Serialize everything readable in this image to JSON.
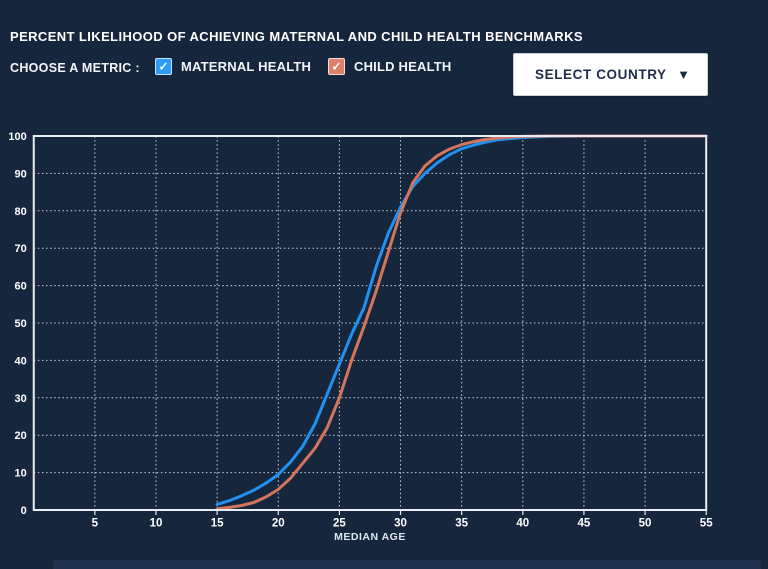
{
  "header": {
    "title": "PERCENT LIKELIHOOD OF ACHIEVING MATERNAL AND CHILD HEALTH BENCHMARKS"
  },
  "controls": {
    "choose_metric_label": "CHOOSE A METRIC :",
    "check_glyph": "✓",
    "metrics": [
      {
        "label": "MATERNAL HEALTH",
        "checked": true,
        "color": "#2D9CF4"
      },
      {
        "label": "CHILD HEALTH",
        "checked": true,
        "color": "#DD7F6B"
      }
    ],
    "country_select": {
      "label": "SELECT COUNTRY",
      "arrow_glyph": "▼"
    }
  },
  "colors": {
    "background": "#16273D",
    "axis_frame": "#E8EDF3",
    "gridline": "#C9D2DB",
    "tick_label": "#FFFFFF",
    "maternal_line": "#2191F1",
    "child_line": "#D4755E",
    "button_bg": "#FFFFFF",
    "button_text": "#1C2D49"
  },
  "chart_data": {
    "type": "line",
    "title": "",
    "xlabel": "MEDIAN AGE",
    "ylabel": "",
    "xlim": [
      0,
      55
    ],
    "ylim": [
      0,
      100
    ],
    "xticks": [
      5,
      10,
      15,
      20,
      25,
      30,
      35,
      40,
      45,
      50,
      55
    ],
    "yticks": [
      0,
      10,
      20,
      30,
      40,
      50,
      60,
      70,
      80,
      90,
      100
    ],
    "grid": "dotted",
    "legend_position": "none",
    "series": [
      {
        "name": "MATERNAL HEALTH",
        "color": "#2191F1",
        "points": [
          [
            15,
            1.5
          ],
          [
            16,
            2.5
          ],
          [
            17,
            3.8
          ],
          [
            18,
            5.3
          ],
          [
            19,
            7.2
          ],
          [
            20,
            9.5
          ],
          [
            21,
            12.8
          ],
          [
            22,
            17
          ],
          [
            23,
            23
          ],
          [
            24,
            31
          ],
          [
            25,
            39
          ],
          [
            26,
            47
          ],
          [
            27,
            54
          ],
          [
            28,
            65
          ],
          [
            29,
            74
          ],
          [
            30,
            81
          ],
          [
            31,
            86.5
          ],
          [
            32,
            90
          ],
          [
            33,
            92.8
          ],
          [
            34,
            95
          ],
          [
            35,
            96.6
          ],
          [
            36,
            97.6
          ],
          [
            37,
            98.4
          ],
          [
            38,
            99
          ],
          [
            39,
            99.3
          ],
          [
            40,
            99.6
          ],
          [
            42,
            99.9
          ],
          [
            45,
            100
          ],
          [
            50,
            100
          ],
          [
            55,
            100
          ]
        ]
      },
      {
        "name": "CHILD HEALTH",
        "color": "#D4755E",
        "points": [
          [
            15,
            0.3
          ],
          [
            16,
            0.7
          ],
          [
            17,
            1.2
          ],
          [
            18,
            2
          ],
          [
            19,
            3.5
          ],
          [
            20,
            5.5
          ],
          [
            21,
            8.5
          ],
          [
            22,
            12.5
          ],
          [
            23,
            16.5
          ],
          [
            24,
            22
          ],
          [
            25,
            30
          ],
          [
            26,
            40
          ],
          [
            27,
            49
          ],
          [
            28,
            58.5
          ],
          [
            29,
            69
          ],
          [
            30,
            79.5
          ],
          [
            31,
            87.5
          ],
          [
            32,
            92
          ],
          [
            33,
            94.7
          ],
          [
            34,
            96.5
          ],
          [
            35,
            97.7
          ],
          [
            36,
            98.5
          ],
          [
            37,
            99.1
          ],
          [
            38,
            99.5
          ],
          [
            39,
            99.7
          ],
          [
            40,
            99.9
          ],
          [
            42,
            100
          ],
          [
            45,
            100
          ],
          [
            50,
            100
          ],
          [
            55,
            100
          ]
        ]
      }
    ]
  }
}
